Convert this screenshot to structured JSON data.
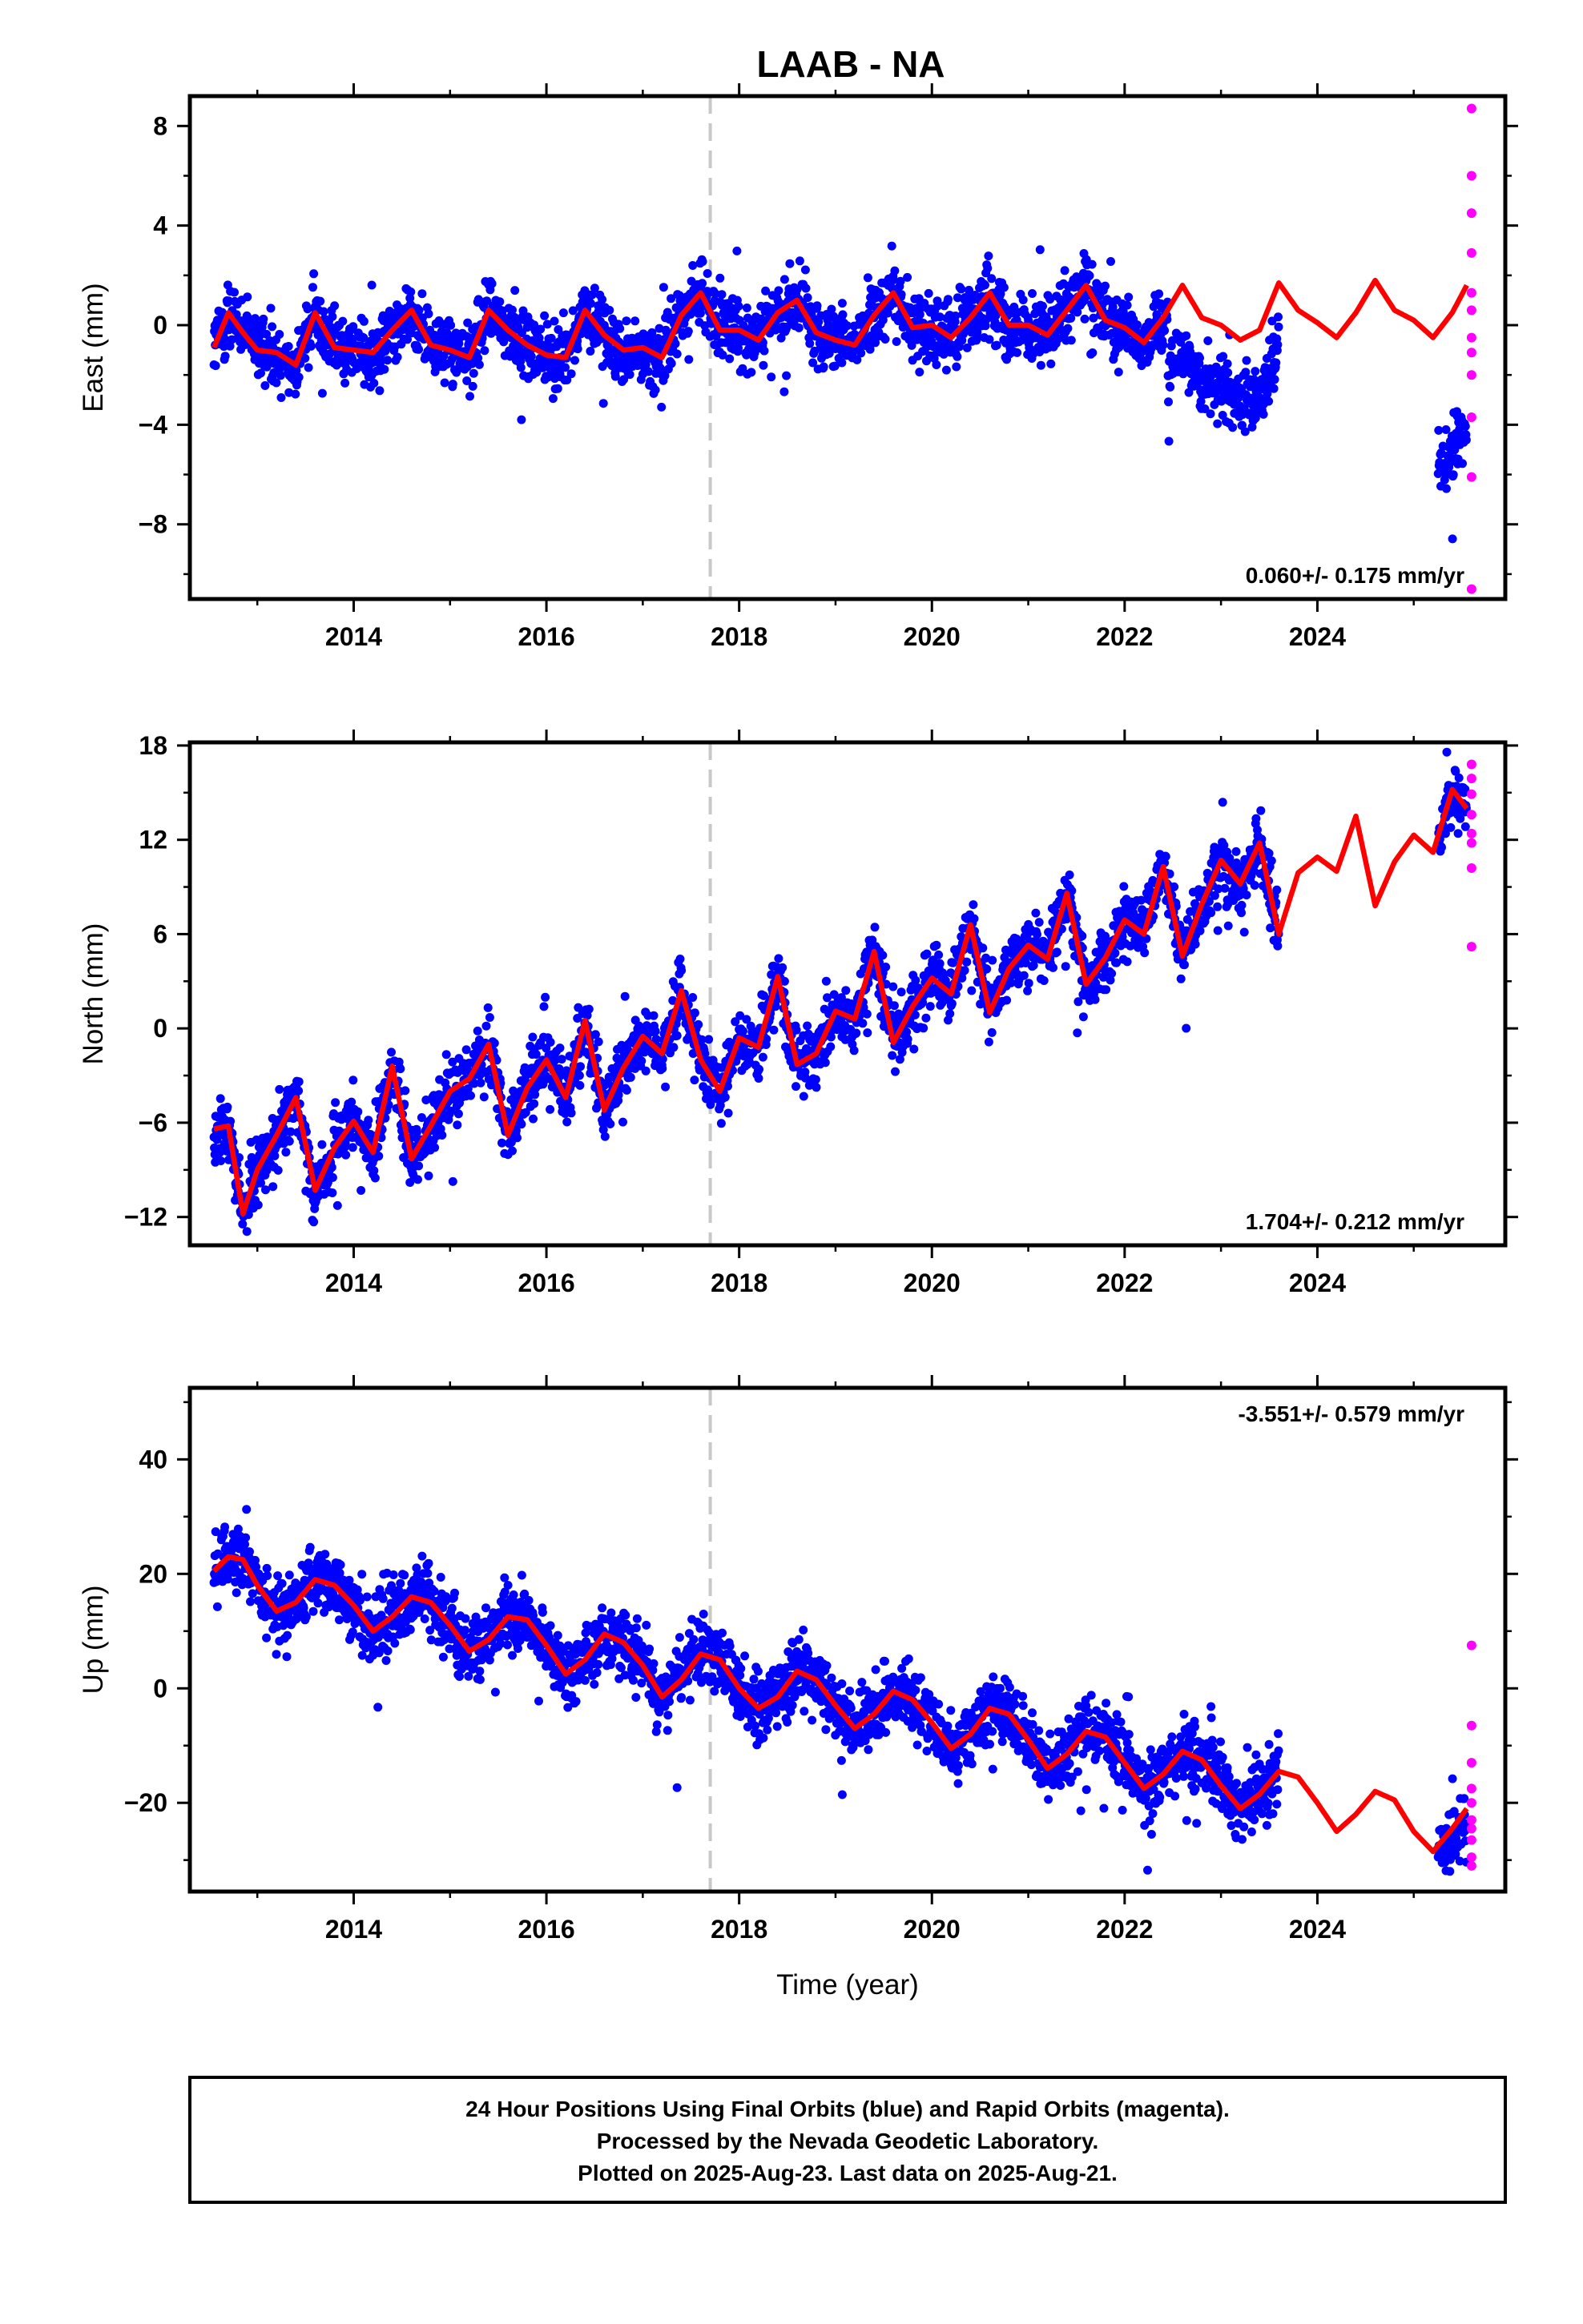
{
  "title": "LAAB - NA",
  "xlabel": "Time (year)",
  "caption": [
    "24 Hour Positions Using Final Orbits (blue) and Rapid Orbits (magenta).",
    "Processed by the Nevada Geodetic Laboratory.",
    "Plotted on 2025-Aug-23. Last data on 2025-Aug-21."
  ],
  "colors": {
    "final_orbits": "#0000ff",
    "rapid_orbits": "#ff00ff",
    "model": "#ff0000",
    "event_line": "#c8c8c8",
    "frame": "#000000"
  },
  "chart_data": [
    {
      "type": "scatter",
      "panel": "east",
      "ylabel": "East (mm)",
      "xlim": [
        2012.3,
        2025.95
      ],
      "ylim": [
        -11,
        9.2
      ],
      "xticks": [
        2014,
        2016,
        2018,
        2020,
        2022,
        2024
      ],
      "yticks": [
        -8,
        -4,
        0,
        4,
        8
      ],
      "rate_text": "0.060+/- 0.175 mm/yr",
      "rate_position": "bottom-right",
      "event_line_x": 2017.7,
      "data_gap": [
        2023.6,
        2025.25
      ],
      "model_curve": {
        "x": [
          2012.55,
          2012.7,
          2012.85,
          2013.0,
          2013.2,
          2013.4,
          2013.6,
          2013.8,
          2014.0,
          2014.2,
          2014.4,
          2014.6,
          2014.8,
          2015.0,
          2015.2,
          2015.4,
          2015.6,
          2015.8,
          2016.0,
          2016.2,
          2016.4,
          2016.6,
          2016.8,
          2017.0,
          2017.2,
          2017.4,
          2017.6,
          2017.8,
          2018.0,
          2018.2,
          2018.4,
          2018.6,
          2018.8,
          2019.0,
          2019.2,
          2019.4,
          2019.6,
          2019.8,
          2020.0,
          2020.2,
          2020.4,
          2020.6,
          2020.8,
          2021.0,
          2021.2,
          2021.4,
          2021.6,
          2021.8,
          2022.0,
          2022.2,
          2022.4,
          2022.6,
          2022.8,
          2023.0,
          2023.2,
          2023.4,
          2023.6,
          2023.8,
          2024.0,
          2024.2,
          2024.4,
          2024.6,
          2024.8,
          2025.0,
          2025.2,
          2025.4,
          2025.55
        ],
        "y": [
          -0.9,
          0.5,
          -0.3,
          -1.0,
          -1.1,
          -1.6,
          0.5,
          -0.9,
          -1.0,
          -1.1,
          -0.2,
          0.6,
          -0.8,
          -1.0,
          -1.3,
          0.6,
          -0.2,
          -0.8,
          -1.2,
          -1.3,
          0.6,
          -0.4,
          -1.0,
          -0.9,
          -1.3,
          0.4,
          1.3,
          -0.2,
          -0.2,
          -0.6,
          0.5,
          1.0,
          -0.3,
          -0.6,
          -0.8,
          0.4,
          1.3,
          -0.1,
          0.0,
          -0.5,
          0.3,
          1.3,
          0.0,
          0.0,
          -0.4,
          0.6,
          1.6,
          0.2,
          -0.1,
          -0.7,
          0.3,
          1.6,
          0.3,
          0.0,
          -0.6,
          -0.2,
          1.7,
          0.6,
          0.1,
          -0.5,
          0.5,
          1.8,
          0.6,
          0.2,
          -0.5,
          0.5,
          1.6
        ]
      },
      "rapid_points": {
        "x": [
          2025.6,
          2025.6,
          2025.6,
          2025.6,
          2025.6,
          2025.6,
          2025.6,
          2025.6,
          2025.6,
          2025.6,
          2025.6,
          2025.6
        ],
        "y": [
          8.7,
          6.0,
          4.5,
          2.9,
          1.3,
          0.6,
          -0.5,
          -1.1,
          -2.0,
          -3.7,
          -6.1,
          -10.6
        ]
      }
    },
    {
      "type": "scatter",
      "panel": "north",
      "ylabel": "North (mm)",
      "xlim": [
        2012.3,
        2025.95
      ],
      "ylim": [
        -13.8,
        18.2
      ],
      "xticks": [
        2014,
        2016,
        2018,
        2020,
        2022,
        2024
      ],
      "yticks": [
        -12,
        -6,
        0,
        6,
        12,
        18
      ],
      "rate_text": "1.704+/- 0.212 mm/yr",
      "rate_position": "bottom-right",
      "event_line_x": 2017.7,
      "data_gap": [
        2023.6,
        2025.25
      ],
      "model_curve": {
        "x": [
          2012.55,
          2012.7,
          2012.85,
          2013.0,
          2013.2,
          2013.4,
          2013.6,
          2013.8,
          2014.0,
          2014.2,
          2014.4,
          2014.6,
          2014.8,
          2015.0,
          2015.2,
          2015.4,
          2015.6,
          2015.8,
          2016.0,
          2016.2,
          2016.4,
          2016.6,
          2016.8,
          2017.0,
          2017.2,
          2017.4,
          2017.6,
          2017.8,
          2018.0,
          2018.2,
          2018.4,
          2018.6,
          2018.8,
          2019.0,
          2019.2,
          2019.4,
          2019.6,
          2019.8,
          2020.0,
          2020.2,
          2020.4,
          2020.6,
          2020.8,
          2021.0,
          2021.2,
          2021.4,
          2021.6,
          2021.8,
          2022.0,
          2022.2,
          2022.4,
          2022.6,
          2022.8,
          2023.0,
          2023.2,
          2023.4,
          2023.6,
          2023.8,
          2024.0,
          2024.2,
          2024.4,
          2024.6,
          2024.8,
          2025.0,
          2025.2,
          2025.4,
          2025.55
        ],
        "y": [
          -6.4,
          -6.2,
          -11.8,
          -9.0,
          -6.8,
          -4.4,
          -10.3,
          -7.6,
          -5.9,
          -7.9,
          -2.4,
          -8.3,
          -6.2,
          -4.0,
          -3.2,
          -1.0,
          -6.8,
          -3.8,
          -2.0,
          -4.4,
          0.5,
          -5.2,
          -2.5,
          -0.5,
          -1.6,
          2.4,
          -2.0,
          -4.0,
          -0.6,
          -1.2,
          3.3,
          -2.3,
          -1.6,
          1.1,
          0.6,
          4.9,
          -0.9,
          1.4,
          3.2,
          2.2,
          6.6,
          1.0,
          3.8,
          5.3,
          4.4,
          8.6,
          2.8,
          4.5,
          6.9,
          6.0,
          10.3,
          4.6,
          7.9,
          10.7,
          9.2,
          11.8,
          6.0,
          9.9,
          10.9,
          10.0,
          13.5,
          7.8,
          10.6,
          12.3,
          11.2,
          15.2,
          14.0
        ]
      },
      "rapid_points": {
        "x": [
          2025.6,
          2025.6,
          2025.6,
          2025.6,
          2025.6,
          2025.6,
          2025.6,
          2025.6
        ],
        "y": [
          16.8,
          15.9,
          14.9,
          13.6,
          12.4,
          11.8,
          10.2,
          5.2
        ]
      }
    },
    {
      "type": "scatter",
      "panel": "up",
      "ylabel": "Up (mm)",
      "xlim": [
        2012.3,
        2025.95
      ],
      "ylim": [
        -35.5,
        52.5
      ],
      "xticks": [
        2014,
        2016,
        2018,
        2020,
        2022,
        2024
      ],
      "yticks": [
        -20,
        0,
        20,
        40
      ],
      "rate_text": "-3.551+/- 0.579 mm/yr",
      "rate_position": "top-right",
      "event_line_x": 2017.7,
      "data_gap": [
        2023.6,
        2025.25
      ],
      "model_curve": {
        "x": [
          2012.55,
          2012.7,
          2012.85,
          2013.0,
          2013.2,
          2013.4,
          2013.6,
          2013.8,
          2014.0,
          2014.2,
          2014.4,
          2014.6,
          2014.8,
          2015.0,
          2015.2,
          2015.4,
          2015.6,
          2015.8,
          2016.0,
          2016.2,
          2016.4,
          2016.6,
          2016.8,
          2017.0,
          2017.2,
          2017.4,
          2017.6,
          2017.8,
          2018.0,
          2018.2,
          2018.4,
          2018.6,
          2018.8,
          2019.0,
          2019.2,
          2019.4,
          2019.6,
          2019.8,
          2020.0,
          2020.2,
          2020.4,
          2020.6,
          2020.8,
          2021.0,
          2021.2,
          2021.4,
          2021.6,
          2021.8,
          2022.0,
          2022.2,
          2022.4,
          2022.6,
          2022.8,
          2023.0,
          2023.2,
          2023.4,
          2023.6,
          2023.8,
          2024.0,
          2024.2,
          2024.4,
          2024.6,
          2024.8,
          2025.0,
          2025.2,
          2025.4,
          2025.55
        ],
        "y": [
          20.5,
          23.0,
          22.5,
          18.0,
          13.5,
          15.0,
          19.0,
          18.0,
          14.5,
          10.0,
          12.5,
          16.0,
          15.0,
          11.0,
          6.5,
          8.5,
          12.5,
          12.0,
          7.5,
          2.5,
          5.0,
          9.5,
          8.0,
          4.0,
          -1.5,
          1.5,
          6.0,
          5.0,
          0.0,
          -3.5,
          -1.5,
          3.0,
          1.5,
          -3.0,
          -7.0,
          -4.5,
          -0.5,
          -2.0,
          -6.0,
          -10.5,
          -8.0,
          -3.5,
          -4.5,
          -9.0,
          -14.0,
          -11.5,
          -7.5,
          -8.5,
          -13.0,
          -17.5,
          -15.0,
          -11.0,
          -12.5,
          -17.0,
          -21.0,
          -18.5,
          -14.5,
          -15.5,
          -20.0,
          -25.0,
          -22.0,
          -18.0,
          -19.5,
          -25.0,
          -28.5,
          -24.5,
          -21.0
        ]
      },
      "rapid_points": {
        "x": [
          2025.6,
          2025.6,
          2025.6,
          2025.6,
          2025.6,
          2025.6,
          2025.6,
          2025.6,
          2025.6,
          2025.6
        ],
        "y": [
          7.5,
          -6.5,
          -13.0,
          -17.5,
          -20.0,
          -23.0,
          -24.5,
          -26.5,
          -29.5,
          -31.0
        ]
      }
    }
  ]
}
